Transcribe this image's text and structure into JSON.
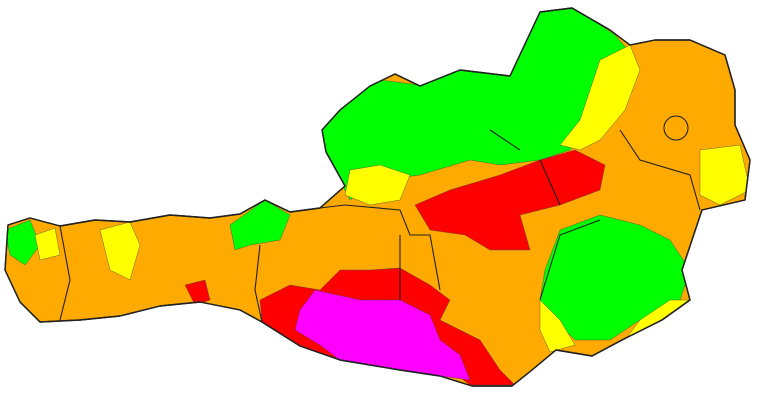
{
  "map": {
    "country": "Austria",
    "colors": {
      "background": "#ffffff",
      "no_warning": "#00ff00",
      "level_1": "#ffff00",
      "level_2": "#ffaa00",
      "level_3": "#ff0000",
      "level_4": "#ff00ff"
    }
  }
}
